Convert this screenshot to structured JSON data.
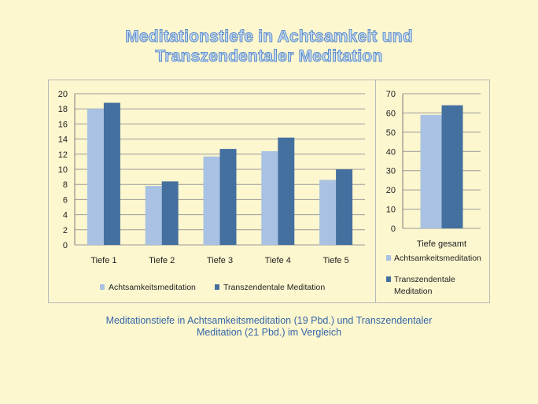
{
  "title": {
    "line1": "Meditationstiefe in Achtsamkeit und",
    "line2": "Transzendentaler Meditation"
  },
  "caption": {
    "line1": "Meditationstiefe in Achtsamkeitsmeditation (19 Pbd.) und Transzendentaler",
    "line2": "Meditation (21 Pbd.) im Vergleich"
  },
  "colors": {
    "achtsamkeit": "#a9c2e3",
    "transzendental": "#44709f",
    "gridline": "#9a9a9a",
    "background": "#fdf7cf"
  },
  "chart_data": [
    {
      "type": "bar",
      "categories": [
        "Tiefe 1",
        "Tiefe 2",
        "Tiefe 3",
        "Tiefe 4",
        "Tiefe 5"
      ],
      "series": [
        {
          "name": "Achtsamkeitsmeditation",
          "values": [
            18,
            7.8,
            11.7,
            12.4,
            8.6
          ]
        },
        {
          "name": "Transzendentale Meditation",
          "values": [
            18.8,
            8.4,
            12.7,
            14.2,
            10
          ]
        }
      ],
      "ylim": [
        0,
        20
      ],
      "yticks": [
        0,
        2,
        4,
        6,
        8,
        10,
        12,
        14,
        16,
        18,
        20
      ],
      "grid": true,
      "legend": "bottom"
    },
    {
      "type": "bar",
      "categories": [
        "Tiefe gesamt"
      ],
      "series": [
        {
          "name": "Achtsamkeitsmeditation",
          "values": [
            59
          ]
        },
        {
          "name": "Transzendentale Meditation",
          "values": [
            64
          ]
        }
      ],
      "ylim": [
        0,
        70
      ],
      "yticks": [
        0,
        10,
        20,
        30,
        40,
        50,
        60,
        70
      ],
      "grid": true,
      "legend": "bottom"
    }
  ],
  "legend_small": {
    "line_a": "Achtsamkeitsmeditation",
    "line_b1": "Transzendentale",
    "line_b2": "Meditation"
  }
}
